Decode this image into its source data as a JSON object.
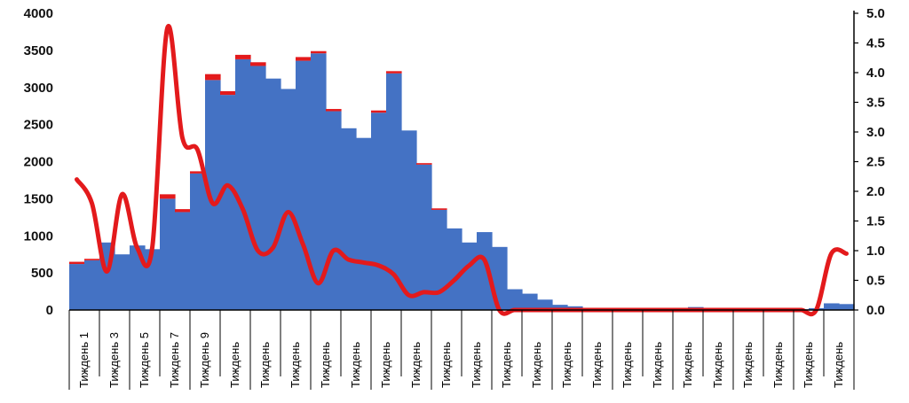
{
  "chart_data": {
    "type": "bar",
    "title": "",
    "xlabel": "",
    "ylabel": "",
    "y_left": {
      "min": 0,
      "max": 4000,
      "ticks": [
        "0",
        "500",
        "1000",
        "1500",
        "2000",
        "2500",
        "3000",
        "3500",
        "4000"
      ]
    },
    "y_right": {
      "min": 0,
      "max": 5,
      "ticks": [
        "0.0",
        "0.5",
        "1.0",
        "1.5",
        "2.0",
        "2.5",
        "3.0",
        "3.5",
        "4.0",
        "4.5",
        "5.0"
      ]
    },
    "grid": false,
    "legend": "none",
    "x_labels": [
      "Тиждень 1",
      "Тиждень 3",
      "Тиждень 5",
      "Тиждень 7",
      "Тиждень 9",
      "Тиждень",
      "Тиждень",
      "Тиждень",
      "Тиждень",
      "Тиждень",
      "Тиждень",
      "Тиждень",
      "Тиждень",
      "Тиждень",
      "Тиждень",
      "Тиждень",
      "Тиждень",
      "Тиждень",
      "Тиждень",
      "Тиждень",
      "Тиждень",
      "Тиждень",
      "Тиждень",
      "Тиждень",
      "Тиждень",
      "Тиждень"
    ],
    "bars_blue": [
      620,
      670,
      910,
      750,
      870,
      820,
      1500,
      1320,
      1840,
      3100,
      2900,
      3380,
      3290,
      3120,
      2980,
      3360,
      3460,
      2680,
      2450,
      2320,
      2660,
      3190,
      2420,
      1960,
      1350,
      1100,
      910,
      1050,
      850,
      280,
      220,
      140,
      70,
      50,
      30,
      20,
      20,
      20,
      25,
      25,
      30,
      40,
      25,
      20,
      20,
      10,
      10,
      10,
      10,
      25,
      90,
      80
    ],
    "bars_red": [
      30,
      20,
      0,
      0,
      0,
      0,
      60,
      40,
      30,
      80,
      50,
      60,
      50,
      0,
      0,
      50,
      30,
      30,
      0,
      0,
      30,
      30,
      0,
      20,
      20,
      0,
      0,
      0,
      0,
      0,
      0,
      0,
      0,
      0,
      0,
      0,
      0,
      0,
      0,
      0,
      0,
      0,
      0,
      0,
      0,
      0,
      0,
      0,
      0,
      0,
      0,
      0
    ],
    "line_right": [
      2.2,
      1.8,
      0.65,
      1.95,
      1.05,
      1.05,
      4.75,
      2.9,
      2.7,
      1.8,
      2.1,
      1.7,
      1.0,
      1.05,
      1.65,
      1.1,
      0.45,
      1.0,
      0.85,
      0.8,
      0.75,
      0.6,
      0.25,
      0.3,
      0.3,
      0.5,
      0.75,
      0.85,
      0.0,
      0.0,
      0.0,
      0.0,
      0.0,
      0.0,
      0.0,
      0.0,
      0.0,
      0.0,
      0.0,
      0.0,
      0.0,
      0.0,
      0.0,
      0.0,
      0.0,
      0.0,
      0.0,
      0.0,
      0.0,
      0.0,
      0.95,
      0.95
    ],
    "colors": {
      "bars": "#4472c4",
      "bar_caps": "#e31a1c",
      "line": "#e31a1c",
      "axis": "#000000"
    }
  }
}
